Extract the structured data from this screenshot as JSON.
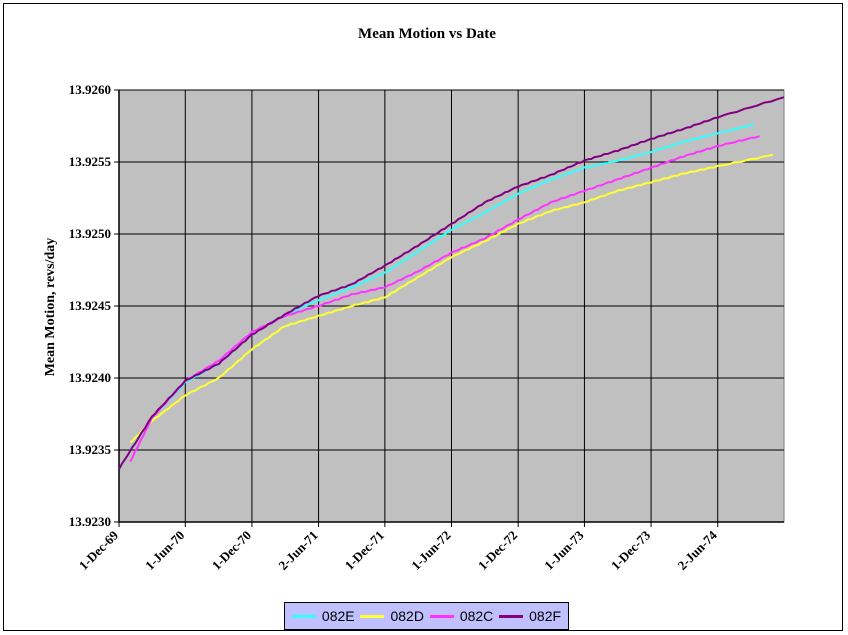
{
  "chart_data": {
    "type": "line",
    "title": "Mean Motion vs Date",
    "xlabel": "",
    "ylabel": "Mean Motion, revs/day",
    "x_ticks": [
      "1-Dec-69",
      "1-Jun-70",
      "1-Dec-70",
      "2-Jun-71",
      "1-Dec-71",
      "1-Jun-72",
      "1-Dec-72",
      "1-Jun-73",
      "1-Dec-73",
      "2-Jun-74"
    ],
    "x_tick_dates": [
      "1969-12-01",
      "1970-06-01",
      "1970-12-01",
      "1971-06-02",
      "1971-12-01",
      "1972-06-01",
      "1972-12-01",
      "1973-06-01",
      "1973-12-01",
      "1974-06-02"
    ],
    "xlim": [
      "1969-12-01",
      "1974-12-01"
    ],
    "y_ticks": [
      "13.9230",
      "13.9235",
      "13.9240",
      "13.9245",
      "13.9250",
      "13.9255",
      "13.9260"
    ],
    "ylim": [
      13.923,
      13.926
    ],
    "grid": true,
    "plot_background": "#c0c0c0",
    "legend_position": "bottom",
    "legend_background": "#c0c0ff",
    "series": [
      {
        "name": "082E",
        "color": "#33ffff",
        "x": [
          "1970-01-01",
          "1970-03-01",
          "1970-06-01",
          "1970-09-01",
          "1970-12-01",
          "1971-03-01",
          "1971-06-01",
          "1971-09-01",
          "1971-12-01",
          "1972-03-01",
          "1972-06-01",
          "1972-09-01",
          "1972-12-01",
          "1973-03-01",
          "1973-06-01",
          "1973-09-01",
          "1973-12-01",
          "1974-03-01",
          "1974-06-01",
          "1974-09-10"
        ],
        "y": [
          13.9235,
          13.92372,
          13.92397,
          13.9241,
          13.9243,
          13.92444,
          13.92454,
          13.92463,
          13.92473,
          13.92488,
          13.92503,
          13.92515,
          13.92528,
          13.92538,
          13.92546,
          13.92551,
          13.92557,
          13.92564,
          13.9257,
          13.92576
        ]
      },
      {
        "name": "082D",
        "color": "#ffff33",
        "x": [
          "1970-01-01",
          "1970-03-01",
          "1970-06-01",
          "1970-09-01",
          "1970-12-01",
          "1971-03-01",
          "1971-06-01",
          "1971-09-01",
          "1971-12-01",
          "1972-03-01",
          "1972-06-01",
          "1972-09-01",
          "1972-12-01",
          "1973-03-01",
          "1973-06-01",
          "1973-09-01",
          "1973-12-01",
          "1974-03-01",
          "1974-06-01",
          "1974-11-01"
        ],
        "y": [
          13.92355,
          13.9237,
          13.92388,
          13.924,
          13.9242,
          13.92436,
          13.92443,
          13.9245,
          13.92456,
          13.9247,
          13.92484,
          13.92495,
          13.92507,
          13.92516,
          13.92522,
          13.9253,
          13.92536,
          13.92542,
          13.92547,
          13.92555
        ]
      },
      {
        "name": "082C",
        "color": "#ff33ff",
        "x": [
          "1970-01-01",
          "1970-03-01",
          "1970-06-01",
          "1970-09-01",
          "1970-12-01",
          "1971-03-01",
          "1971-06-01",
          "1971-09-01",
          "1971-12-01",
          "1972-03-01",
          "1972-06-01",
          "1972-09-01",
          "1972-12-01",
          "1973-03-01",
          "1973-06-01",
          "1973-09-01",
          "1973-12-01",
          "1974-03-01",
          "1974-06-01",
          "1974-09-25"
        ],
        "y": [
          13.92342,
          13.92372,
          13.92398,
          13.92412,
          13.92432,
          13.92443,
          13.9245,
          13.92458,
          13.92463,
          13.92474,
          13.92487,
          13.92497,
          13.9251,
          13.92522,
          13.9253,
          13.92538,
          13.92546,
          13.92554,
          13.92561,
          13.92568
        ]
      },
      {
        "name": "082F",
        "color": "#800080",
        "x": [
          "1969-12-01",
          "1970-03-01",
          "1970-06-01",
          "1970-09-01",
          "1970-12-01",
          "1971-03-01",
          "1971-06-01",
          "1971-09-01",
          "1971-12-01",
          "1972-03-01",
          "1972-06-01",
          "1972-09-01",
          "1972-12-01",
          "1973-03-01",
          "1973-06-01",
          "1973-09-01",
          "1973-12-01",
          "1974-03-01",
          "1974-06-01",
          "1974-12-01"
        ],
        "y": [
          13.92337,
          13.92373,
          13.92398,
          13.9241,
          13.9243,
          13.92444,
          13.92457,
          13.92465,
          13.92478,
          13.92492,
          13.92507,
          13.92522,
          13.92533,
          13.92541,
          13.92551,
          13.92558,
          13.92566,
          13.92573,
          13.92581,
          13.92595
        ]
      }
    ]
  }
}
